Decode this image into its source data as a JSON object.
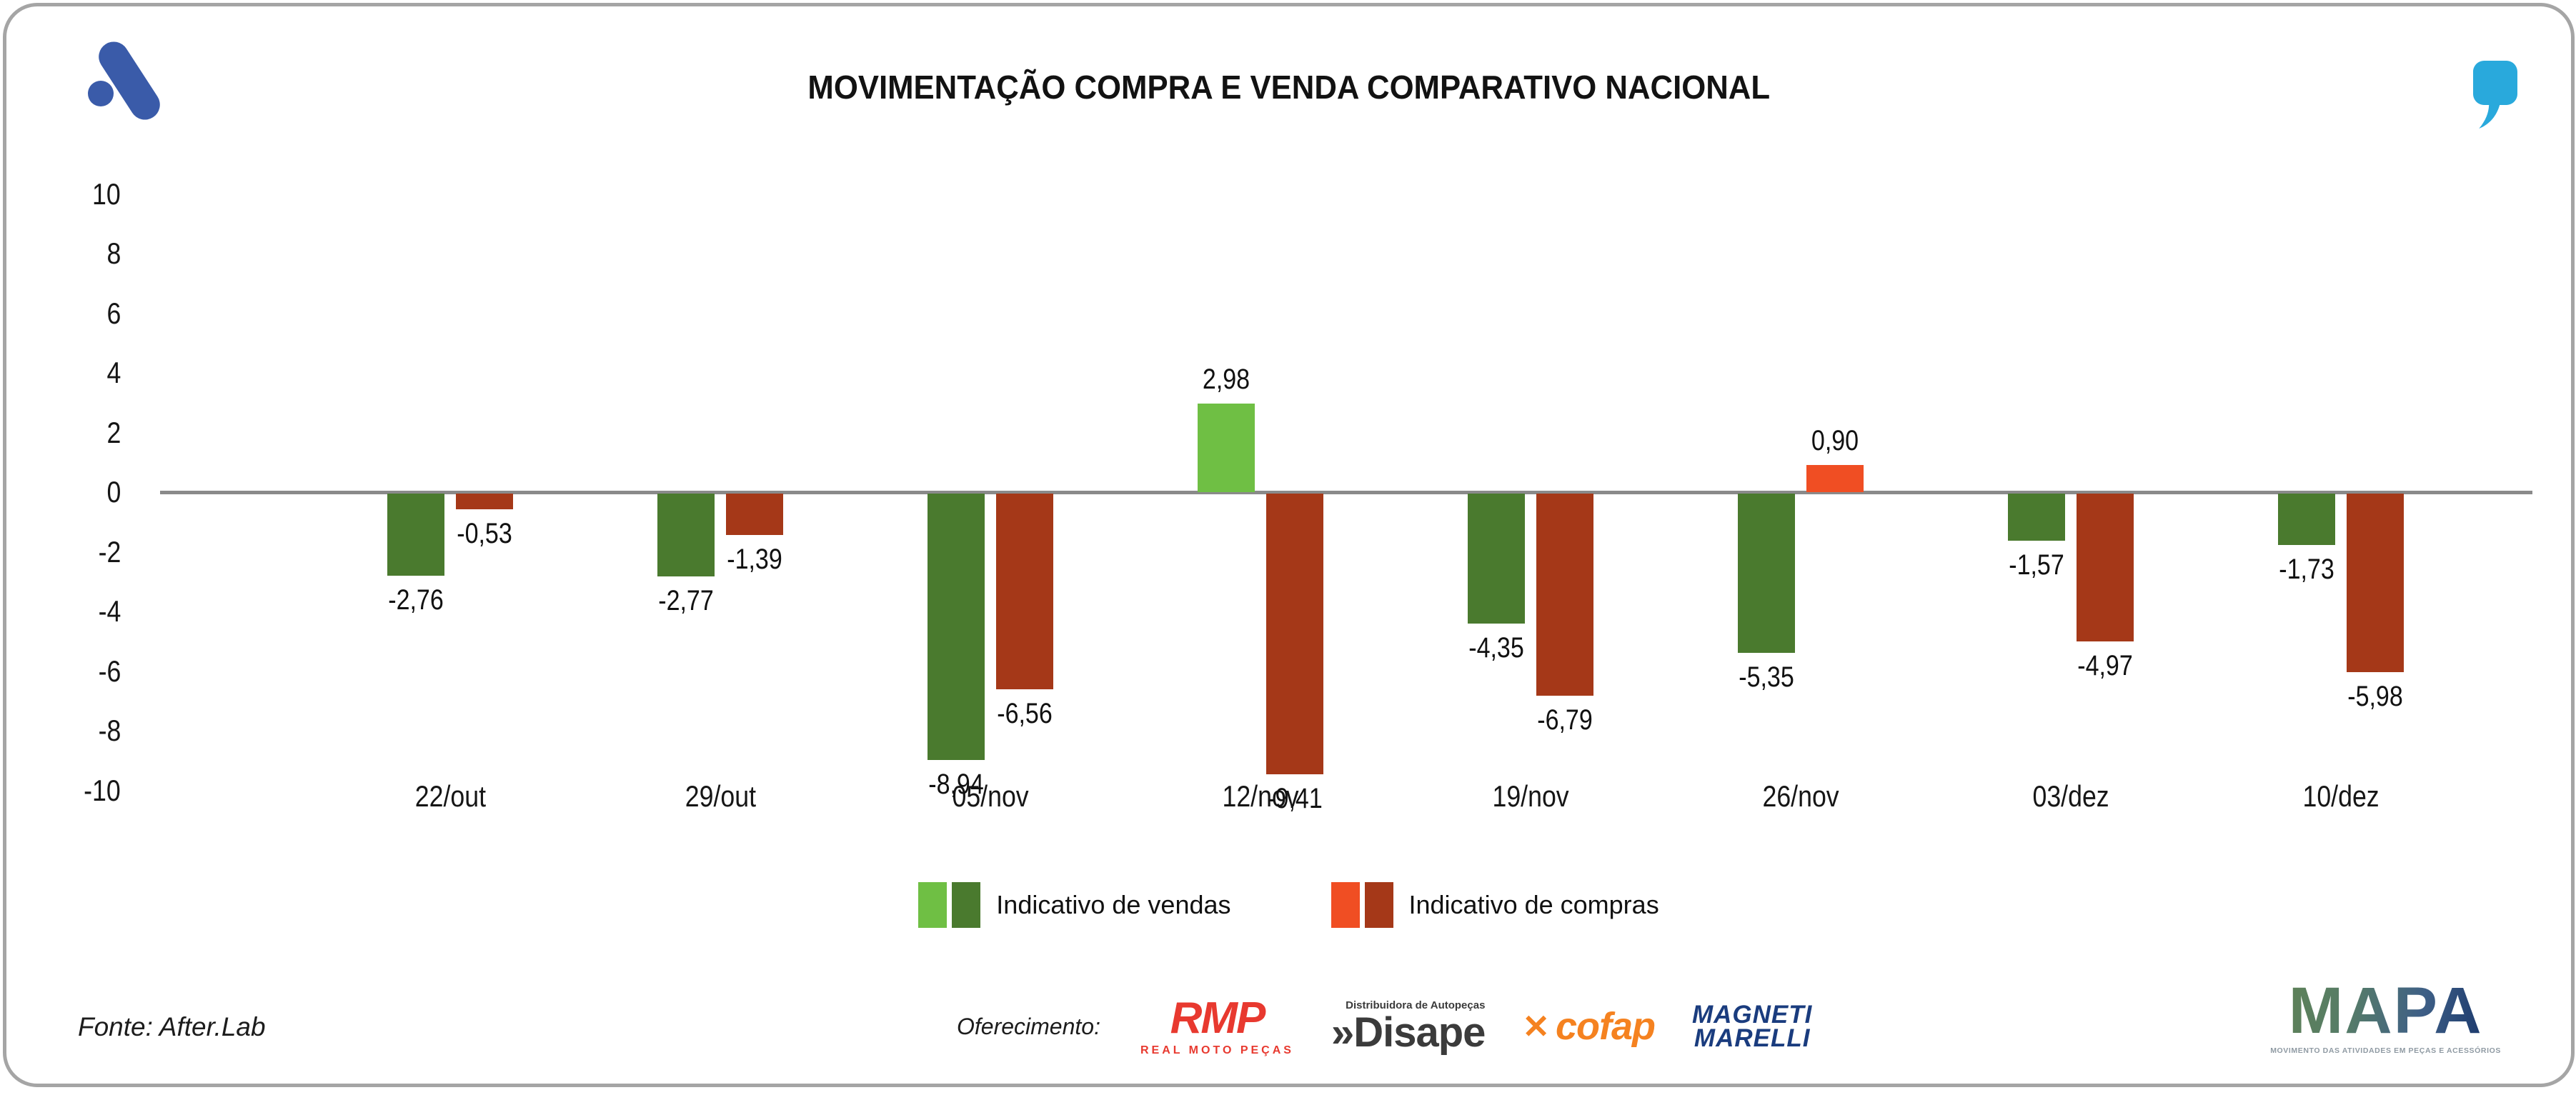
{
  "header": {
    "title": "MOVIMENTAÇÃO COMPRA E VENDA COMPARATIVO NACIONAL"
  },
  "branding": {
    "afterlab_logo_color": "#3A5BA9",
    "quote_icon_color": "#29A9DC"
  },
  "chart_data": {
    "type": "bar",
    "title": "MOVIMENTAÇÃO COMPRA E VENDA COMPARATIVO NACIONAL",
    "categories": [
      "22/out",
      "29/out",
      "05/nov",
      "12/nov",
      "19/nov",
      "26/nov",
      "03/dez",
      "10/dez"
    ],
    "series": [
      {
        "name": "Indicativo de vendas",
        "values": [
          -2.76,
          -2.77,
          -8.94,
          2.98,
          -4.35,
          -5.35,
          -1.57,
          -1.73
        ],
        "labels": [
          "-2,76",
          "-2,77",
          "-8,94",
          "2,98",
          "-4,35",
          "-5,35",
          "-1,57",
          "-1,73"
        ],
        "color_positive": "#6FBF44",
        "color_negative": "#4A7A2E"
      },
      {
        "name": "Indicativo de compras",
        "values": [
          -0.53,
          -1.39,
          -6.56,
          -9.41,
          -6.79,
          0.9,
          -4.97,
          -5.98
        ],
        "labels": [
          "-0,53",
          "-1,39",
          "-6,56",
          "-9,41",
          "-6,79",
          "0,90",
          "-4,97",
          "-5,98"
        ],
        "color_positive": "#F04E23",
        "color_negative": "#A53818"
      }
    ],
    "y_ticks": [
      10,
      8,
      6,
      4,
      2,
      0,
      -2,
      -4,
      -6,
      -8,
      -10
    ],
    "ylim": [
      -10,
      10
    ],
    "grid": false,
    "legend_position": "bottom",
    "axis_color": "#8A8A8A"
  },
  "footer": {
    "fonte": "Fonte: After.Lab",
    "oferecimento_label": "Oferecimento:",
    "sponsors": {
      "rmp": {
        "name": "RMP",
        "subtitle": "REAL MOTO PEÇAS"
      },
      "disape": {
        "prefix": "»",
        "name": "Disape",
        "tagline": "Distribuidora de Autopeças"
      },
      "cofap": {
        "icon_glyph": "✕",
        "name": "cofap"
      },
      "magneti": {
        "line1": "MAGNETI",
        "line2": "MARELLI"
      }
    },
    "mapa": {
      "name": "MAPA",
      "tagline": "MOVIMENTO DAS ATIVIDADES EM PEÇAS E ACESSÓRIOS"
    }
  }
}
